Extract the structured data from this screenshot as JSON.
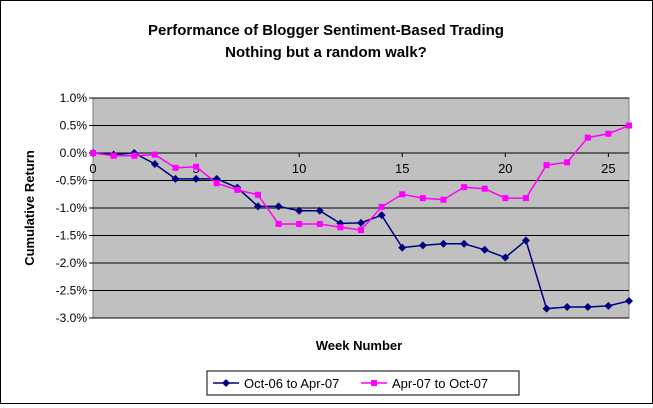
{
  "chart_data": {
    "type": "line",
    "title": "Performance of Blogger Sentiment-Based Trading",
    "subtitle": "Nothing but a random walk?",
    "xlabel": "Week Number",
    "ylabel": "Cumulative Return",
    "xlim": [
      0,
      26
    ],
    "ylim": [
      -3.0,
      1.0
    ],
    "x_ticks": [
      0,
      5,
      10,
      15,
      20,
      25
    ],
    "x_tick_labels": [
      "0",
      "5",
      "10",
      "15",
      "20",
      "25"
    ],
    "y_ticks": [
      1.0,
      0.5,
      0.0,
      -0.5,
      -1.0,
      -1.5,
      -2.0,
      -2.5,
      -3.0
    ],
    "y_tick_labels": [
      "1.0%",
      "0.5%",
      "0.0%",
      "-0.5%",
      "-1.0%",
      "-1.5%",
      "-2.0%",
      "-2.5%",
      "-3.0%"
    ],
    "grid": "horizontal",
    "plot_background": "#C0C0C0",
    "legend_position": "bottom",
    "x": [
      0,
      1,
      2,
      3,
      4,
      5,
      6,
      7,
      8,
      9,
      10,
      11,
      12,
      13,
      14,
      15,
      16,
      17,
      18,
      19,
      20,
      21,
      22,
      23,
      24,
      25,
      26
    ],
    "series": [
      {
        "name": "Oct-06 to Apr-07",
        "color": "#000080",
        "marker": "diamond",
        "values": [
          0.0,
          -0.03,
          0.0,
          -0.2,
          -0.47,
          -0.47,
          -0.47,
          -0.63,
          -0.97,
          -0.97,
          -1.05,
          -1.05,
          -1.28,
          -1.27,
          -1.13,
          -1.72,
          -1.68,
          -1.65,
          -1.65,
          -1.76,
          -1.9,
          -1.59,
          -2.83,
          -2.8,
          -2.8,
          -2.78,
          -2.69
        ]
      },
      {
        "name": "Apr-07 to Oct-07",
        "color": "#FF00FF",
        "marker": "square",
        "values": [
          0.0,
          -0.05,
          -0.05,
          -0.03,
          -0.27,
          -0.25,
          -0.55,
          -0.67,
          -0.76,
          -1.29,
          -1.29,
          -1.29,
          -1.35,
          -1.4,
          -0.98,
          -0.75,
          -0.82,
          -0.85,
          -0.62,
          -0.65,
          -0.82,
          -0.82,
          -0.22,
          -0.17,
          0.28,
          0.35,
          0.5
        ]
      }
    ]
  }
}
